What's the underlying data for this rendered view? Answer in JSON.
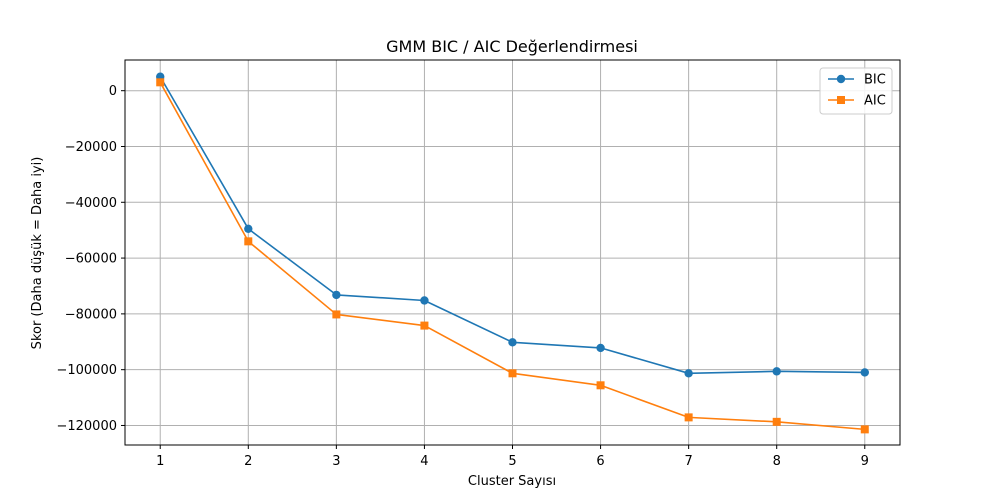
{
  "chart_data": {
    "type": "line",
    "title": "GMM BIC / AIC Değerlendirmesi",
    "xlabel": "Cluster Sayısı",
    "ylabel": "Skor (Daha düşük = Daha iyi)",
    "x": [
      1,
      2,
      3,
      4,
      5,
      6,
      7,
      8,
      9
    ],
    "xticks": [
      "1",
      "2",
      "3",
      "4",
      "5",
      "6",
      "7",
      "8",
      "9"
    ],
    "xlim": [
      0.6,
      9.4
    ],
    "ylim": [
      -127000,
      11000
    ],
    "yticks": [
      0,
      -20000,
      -40000,
      -60000,
      -80000,
      -100000,
      -120000
    ],
    "ytick_labels": [
      "0",
      "−20000",
      "−40000",
      "−60000",
      "−80000",
      "−100000",
      "−120000"
    ],
    "grid": true,
    "legend_position": "top-right",
    "series": [
      {
        "name": "BIC",
        "color": "#1f77b4",
        "marker": "circle",
        "values": [
          5000,
          -49500,
          -73200,
          -75200,
          -90200,
          -92200,
          -101300,
          -100600,
          -101000
        ]
      },
      {
        "name": "AIC",
        "color": "#ff7f0e",
        "marker": "square",
        "values": [
          3000,
          -54000,
          -80200,
          -84200,
          -101300,
          -105600,
          -117100,
          -118700,
          -121400
        ]
      }
    ]
  }
}
